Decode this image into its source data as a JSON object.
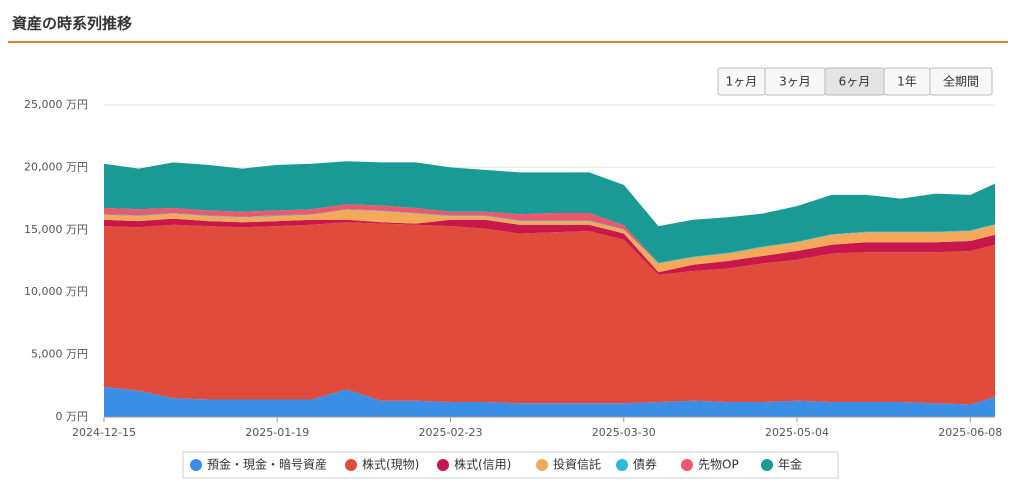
{
  "chart_data": {
    "type": "stacked-area",
    "title": "資産の時系列推移",
    "range_buttons": [
      "1ヶ月",
      "3ヶ月",
      "6ヶ月",
      "1年",
      "全期間"
    ],
    "selected_button": 2,
    "x": [
      "2024-12-15",
      "2024-12-22",
      "2024-12-29",
      "2025-01-05",
      "2025-01-12",
      "2025-01-19",
      "2025-01-26",
      "2025-02-02",
      "2025-02-09",
      "2025-02-16",
      "2025-02-23",
      "2025-03-02",
      "2025-03-09",
      "2025-03-16",
      "2025-03-23",
      "2025-03-30",
      "2025-04-06",
      "2025-04-13",
      "2025-04-20",
      "2025-04-27",
      "2025-05-04",
      "2025-05-11",
      "2025-05-18",
      "2025-05-25",
      "2025-06-01",
      "2025-06-08",
      "2025-06-13"
    ],
    "xlim": [
      "2024-12-15",
      "2025-06-13"
    ],
    "xticks": [
      "2024-12-15",
      "2025-01-19",
      "2025-02-23",
      "2025-03-30",
      "2025-05-04",
      "2025-06-08"
    ],
    "ylim": [
      0,
      25000
    ],
    "yticks": [
      {
        "value": 0,
        "label": "0 万円"
      },
      {
        "value": 5000,
        "label": "5,000 万円"
      },
      {
        "value": 10000,
        "label": "10,000 万円"
      },
      {
        "value": 15000,
        "label": "15,000 万円"
      },
      {
        "value": 20000,
        "label": "20,000 万円"
      },
      {
        "value": 25000,
        "label": "25,000 万円"
      }
    ],
    "grid": true,
    "series": [
      {
        "name": "預金・現金・暗号資産",
        "color": "#3a8ee6",
        "values": [
          2400,
          2100,
          1500,
          1400,
          1400,
          1400,
          1400,
          2200,
          1300,
          1300,
          1200,
          1200,
          1100,
          1100,
          1100,
          1100,
          1200,
          1300,
          1200,
          1200,
          1300,
          1200,
          1200,
          1200,
          1100,
          1000,
          1600
        ]
      },
      {
        "name": "株式(現物)",
        "color": "#e14b3b",
        "values": [
          12900,
          13100,
          13900,
          13900,
          13800,
          13900,
          14000,
          13400,
          14200,
          14100,
          14100,
          13900,
          13600,
          13700,
          13800,
          13100,
          10200,
          10400,
          10700,
          11100,
          11300,
          11900,
          12000,
          12000,
          12100,
          12300,
          12200
        ]
      },
      {
        "name": "株式(信用)",
        "color": "#c8174a",
        "values": [
          500,
          500,
          500,
          400,
          400,
          400,
          400,
          200,
          100,
          100,
          500,
          700,
          700,
          600,
          500,
          500,
          200,
          500,
          600,
          600,
          700,
          700,
          800,
          800,
          800,
          800,
          800
        ]
      },
      {
        "name": "投資信託",
        "color": "#f5a85a",
        "values": [
          400,
          400,
          400,
          400,
          400,
          400,
          400,
          800,
          900,
          800,
          300,
          300,
          300,
          300,
          300,
          300,
          700,
          600,
          600,
          700,
          700,
          800,
          800,
          800,
          800,
          800,
          800
        ]
      },
      {
        "name": "債券",
        "color": "#2bbbd8",
        "values": [
          50,
          50,
          50,
          50,
          50,
          50,
          50,
          50,
          50,
          50,
          50,
          50,
          50,
          50,
          50,
          50,
          50,
          50,
          50,
          50,
          50,
          50,
          50,
          50,
          50,
          50,
          50
        ]
      },
      {
        "name": "先物OP",
        "color": "#f0566e",
        "values": [
          500,
          500,
          400,
          400,
          400,
          400,
          400,
          400,
          400,
          400,
          300,
          300,
          500,
          600,
          600,
          300,
          0,
          0,
          0,
          0,
          0,
          0,
          0,
          0,
          0,
          0,
          0
        ]
      },
      {
        "name": "年金",
        "color": "#1a9a94",
        "values": [
          3550,
          3250,
          3650,
          3650,
          3450,
          3650,
          3650,
          3450,
          3450,
          3650,
          3550,
          3350,
          3350,
          3250,
          3250,
          3250,
          2950,
          2950,
          2850,
          2650,
          2850,
          3150,
          2950,
          2650,
          3050,
          2850,
          3250
        ]
      }
    ]
  }
}
